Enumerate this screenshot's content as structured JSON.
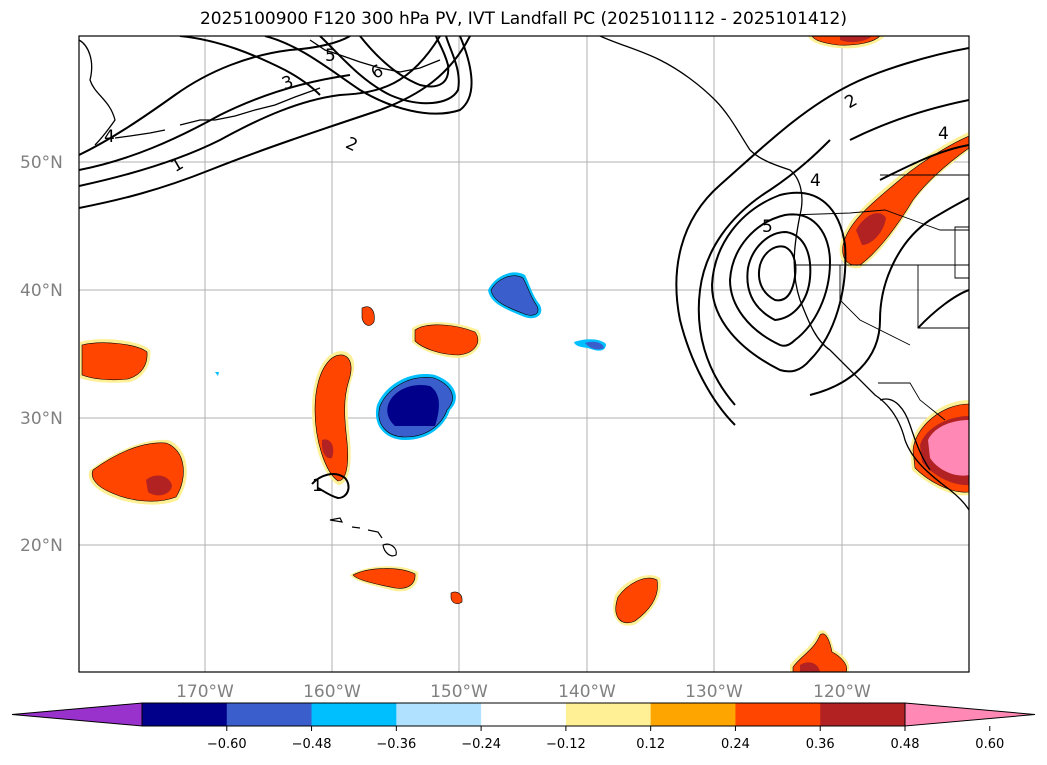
{
  "title": "2025100900 F120 300 hPa PV, IVT Landfall PC (2025101112 - 2025101412)",
  "map": {
    "lat_labels": [
      "50°N",
      "40°N",
      "30°N",
      "20°N"
    ],
    "lon_labels": [
      "170°W",
      "160°W",
      "150°W",
      "140°W",
      "130°W",
      "120°W"
    ],
    "contour_labels": [
      "1",
      "2",
      "3",
      "4",
      "5",
      "6",
      "2",
      "4",
      "4",
      "5",
      "1"
    ]
  },
  "colorbar": {
    "ticks": [
      "−0.60",
      "−0.48",
      "−0.36",
      "−0.24",
      "−0.12",
      "0.12",
      "0.24",
      "0.36",
      "0.48",
      "0.60"
    ],
    "colors": [
      "#9932cc",
      "#00008b",
      "#3a5fcd",
      "#00bfff",
      "#b0e2ff",
      "#ffffff",
      "#fff096",
      "#ffa500",
      "#ff4500",
      "#b22222",
      "#ff88b4"
    ]
  },
  "colors": {
    "neg_strong": "#00008b",
    "neg_mid": "#3a5fcd",
    "neg_light": "#00bfff",
    "pos_light": "#fff096",
    "pos_mid": "#ffa500",
    "pos_strong": "#ff4500",
    "pos_darker": "#b22222",
    "pos_max": "#ff88b4"
  }
}
